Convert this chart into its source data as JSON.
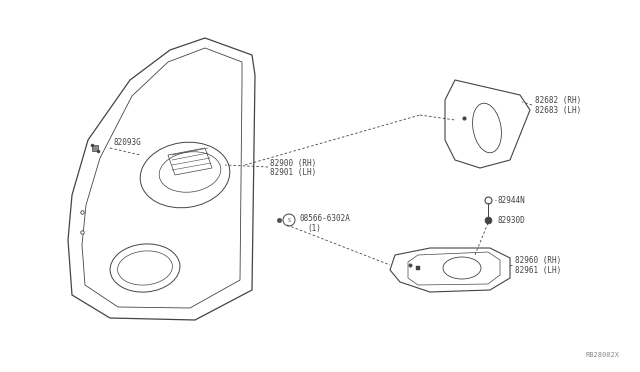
{
  "bg_color": "#ffffff",
  "line_color": "#444444",
  "diagram_id": "RB28002X",
  "parts_labels": {
    "82093G": "82093G",
    "82900": "82900 (RH)\n82901 (LH)",
    "08566": "08566-6302A\n(1)",
    "82682": "82682 (RH)\n82683 (LH)",
    "82944N": "82944N",
    "82930D": "82930D",
    "82960": "82960 (RH)\n82961 (LH)"
  }
}
